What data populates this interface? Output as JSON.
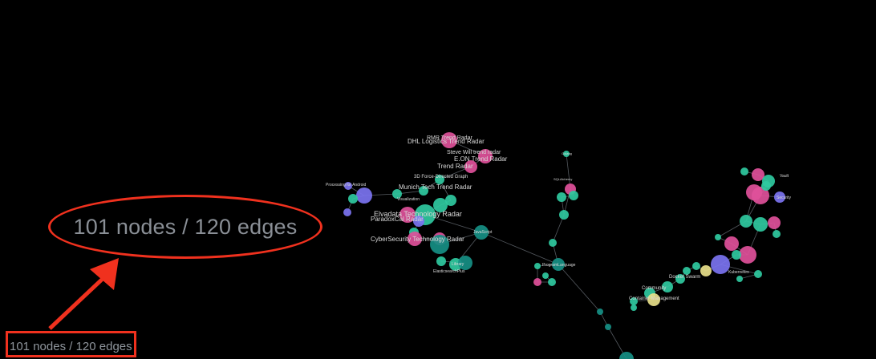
{
  "status": {
    "node_edge_count": "101 nodes / 120 edges"
  },
  "callout": {
    "text": "101 nodes / 120 edges"
  },
  "colors": {
    "annotation_red": "#f0311e",
    "node_pink": "#e0509a",
    "node_teal": "#2fc9a0",
    "node_purple": "#7b73f0",
    "node_yellow": "#e8e08a",
    "edge": "#555a60",
    "label": "#d8d8d8"
  },
  "graph": {
    "labels": {
      "tl1": "RMR Trend Radar",
      "tl2": "DHL Logistics Trend Radar",
      "tl3": "Steve Will trend radar",
      "tl4": "E.ON Trend Radar",
      "tl5": "Trend Radar",
      "tl6": "3D Force-Directed Graph",
      "tl7": "Munich Tech Trend Radar",
      "tl8": "Processing for Android",
      "tl9": "Visualization",
      "tl10": "Elvadata Technology Radar",
      "tl11": "ParadoxCal Radar",
      "tl12": "CyberSecurity Technology Radar",
      "tl13": "JavaScript",
      "tl14": "Library",
      "tl15": "ElasticsearchPlus",
      "tl16": "Golang",
      "tl17": "SQLAlchemy",
      "tl18": "ProgramLanguage",
      "tl19": "Vault",
      "tl20": "Security",
      "tl21": "Container Management",
      "tl22": "Docker Swarm",
      "tl23": "Community",
      "tl24": "Kubernetes"
    }
  }
}
